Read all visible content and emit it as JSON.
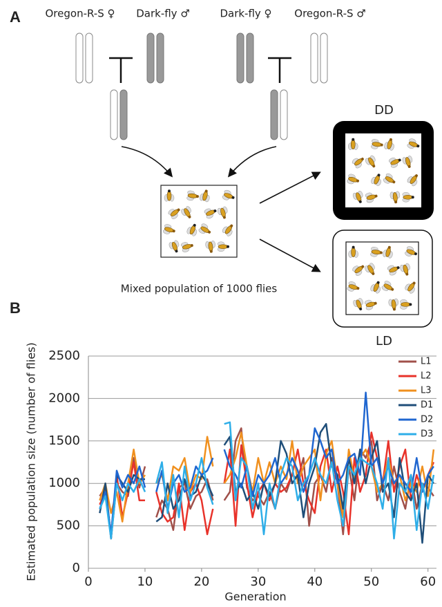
{
  "panel_a": {
    "label": "A",
    "parent_labels": [
      "Oregon-R-S ♀",
      "Dark-fly ♂",
      "Dark-fly ♀",
      "Oregon-R-S ♂"
    ],
    "mixed_label": "Mixed population of 1000 flies",
    "dd_label": "DD",
    "ld_label": "LD"
  },
  "chart_data": {
    "type": "line",
    "panel_label": "B",
    "ylabel": "Estimated population size (number of flies)",
    "xlabel": "Generation",
    "xlim": [
      0,
      61.5
    ],
    "ylim": [
      0,
      2500
    ],
    "xticks": [
      0,
      10,
      20,
      30,
      40,
      50,
      60
    ],
    "yticks": [
      0,
      500,
      1000,
      1500,
      2000,
      2500
    ],
    "grid": true,
    "legend": "upper right",
    "x": [
      2,
      3,
      4,
      5,
      6,
      7,
      8,
      9,
      10,
      11,
      12,
      13,
      14,
      15,
      16,
      17,
      18,
      19,
      20,
      21,
      22,
      23,
      24,
      25,
      26,
      27,
      28,
      29,
      30,
      31,
      32,
      33,
      34,
      35,
      36,
      37,
      38,
      39,
      40,
      41,
      42,
      43,
      44,
      45,
      46,
      47,
      48,
      49,
      50,
      51,
      52,
      53,
      54,
      55,
      56,
      57,
      58,
      59,
      60,
      61
    ],
    "series": [
      {
        "name": "L1",
        "color": "#a0504a",
        "values": [
          850,
          950,
          350,
          1000,
          900,
          850,
          1300,
          950,
          1200,
          null,
          600,
          800,
          700,
          450,
          950,
          1000,
          700,
          850,
          900,
          1050,
          800,
          null,
          800,
          900,
          1500,
          1650,
          950,
          800,
          850,
          750,
          900,
          700,
          1000,
          900,
          1100,
          1050,
          1300,
          500,
          1000,
          1100,
          900,
          1300,
          1000,
          400,
          1200,
          800,
          1400,
          1300,
          1500,
          800,
          1000,
          800,
          1200,
          900,
          700,
          1100,
          700,
          1000,
          950,
          850
        ]
      },
      {
        "name": "L2",
        "color": "#e8322a",
        "values": [
          750,
          900,
          400,
          1100,
          600,
          900,
          1250,
          800,
          800,
          null,
          900,
          650,
          550,
          600,
          1000,
          450,
          900,
          1000,
          800,
          400,
          700,
          null,
          1000,
          1400,
          500,
          1450,
          1000,
          600,
          900,
          1000,
          800,
          1000,
          900,
          950,
          1100,
          1400,
          1000,
          800,
          650,
          1200,
          1400,
          900,
          1200,
          900,
          400,
          1300,
          900,
          1100,
          1600,
          1300,
          1000,
          1500,
          900,
          1200,
          1400,
          800,
          1100,
          900,
          1100,
          1250
        ]
      },
      {
        "name": "L3",
        "color": "#f0901e",
        "values": [
          800,
          1000,
          650,
          900,
          550,
          1000,
          1400,
          1000,
          1100,
          null,
          1000,
          1100,
          800,
          1200,
          1150,
          1300,
          900,
          1100,
          1050,
          1550,
          1200,
          null,
          1000,
          1100,
          1300,
          1600,
          1200,
          900,
          1300,
          1000,
          1250,
          1000,
          1200,
          1050,
          1500,
          1000,
          1200,
          1300,
          1400,
          800,
          1350,
          1500,
          1000,
          600,
          1400,
          1050,
          1300,
          1400,
          1200,
          900,
          1000,
          1300,
          1000,
          1100,
          800,
          1000,
          900,
          1200,
          850,
          1400
        ]
      },
      {
        "name": "D1",
        "color": "#1f4e79",
        "values": [
          650,
          1000,
          350,
          1100,
          1000,
          900,
          1100,
          1050,
          1050,
          null,
          550,
          600,
          1000,
          700,
          800,
          1050,
          850,
          900,
          1100,
          1000,
          850,
          null,
          1450,
          1550,
          900,
          1000,
          800,
          900,
          700,
          1000,
          850,
          1000,
          1500,
          1350,
          1000,
          1100,
          600,
          1000,
          1200,
          1600,
          1700,
          1200,
          1100,
          700,
          1300,
          1000,
          1400,
          1000,
          1300,
          1500,
          900,
          1000,
          600,
          1300,
          900,
          800,
          1000,
          300,
          1100,
          1000
        ]
      },
      {
        "name": "D2",
        "color": "#1f66d0",
        "values": [
          700,
          900,
          400,
          1150,
          950,
          1100,
          1000,
          1200,
          950,
          null,
          900,
          1150,
          700,
          1000,
          1100,
          900,
          950,
          1200,
          1100,
          1150,
          1300,
          null,
          1400,
          1200,
          1100,
          950,
          1200,
          850,
          1100,
          1000,
          1100,
          1300,
          1000,
          1100,
          1300,
          1150,
          900,
          1100,
          1650,
          1500,
          1300,
          1400,
          1000,
          1100,
          1300,
          1350,
          1100,
          2070,
          1200,
          1300,
          1000,
          1200,
          1000,
          1100,
          1000,
          900,
          1300,
          900,
          1100,
          1200
        ]
      },
      {
        "name": "D3",
        "color": "#2eaee8",
        "values": [
          700,
          850,
          350,
          1000,
          800,
          1000,
          900,
          1050,
          900,
          null,
          1000,
          1250,
          650,
          1100,
          600,
          1200,
          800,
          1000,
          1300,
          950,
          750,
          null,
          1700,
          1720,
          800,
          1300,
          1200,
          700,
          1000,
          400,
          1000,
          700,
          1100,
          1300,
          1200,
          800,
          1000,
          1100,
          1300,
          1100,
          1000,
          1250,
          800,
          500,
          1200,
          1100,
          1300,
          1250,
          1200,
          1000,
          700,
          1300,
          350,
          1000,
          900,
          1100,
          450,
          1000,
          700,
          1100
        ]
      }
    ]
  }
}
